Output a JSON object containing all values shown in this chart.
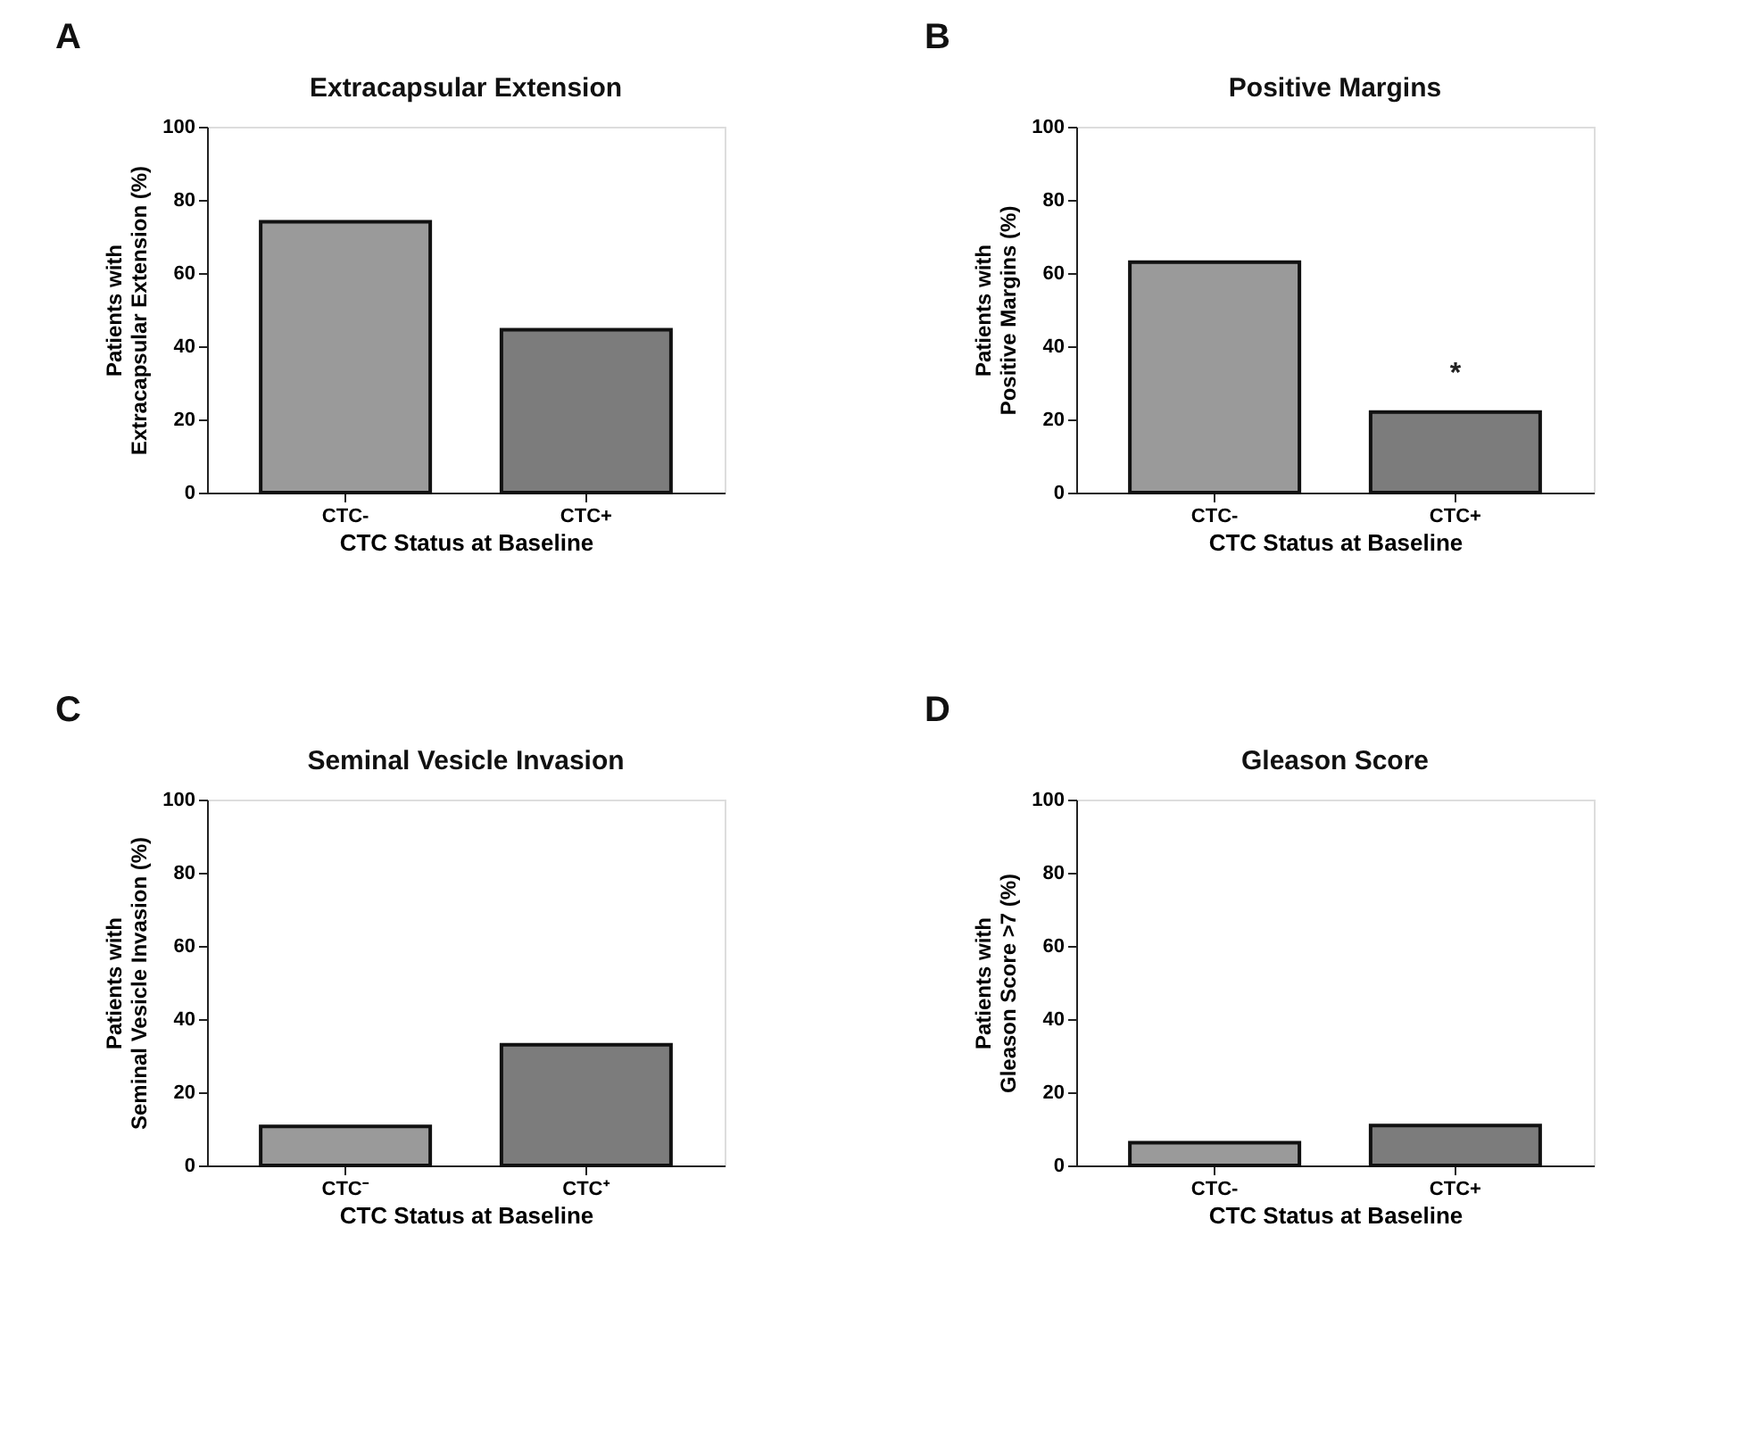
{
  "chart_data": [
    {
      "type": "bar",
      "title": "Extracapsular Extension",
      "xlabel": "CTC Status at Baseline",
      "ylabel": "Patients with\nExtracapsular Extension (%)",
      "categories": [
        "CTC-",
        "CTC+"
      ],
      "values": [
        74,
        44.5
      ],
      "colors": [
        "#9a9a9a",
        "#7c7c7c"
      ],
      "ylim": [
        0,
        100
      ],
      "yticks": [
        0,
        20,
        40,
        60,
        80,
        100
      ],
      "grid": false,
      "annotations": [
        "A"
      ]
    },
    {
      "type": "bar",
      "title": "Positive Margins",
      "xlabel": "CTC Status at Baseline",
      "ylabel": "Patients with\nPositive Margins (%)",
      "categories": [
        "CTC-",
        "CTC+"
      ],
      "values": [
        63,
        22
      ],
      "colors": [
        "#9a9a9a",
        "#7c7c7c"
      ],
      "ylim": [
        0,
        100
      ],
      "yticks": [
        0,
        20,
        40,
        60,
        80,
        100
      ],
      "grid": false,
      "annotations": [
        "B",
        "*"
      ]
    },
    {
      "type": "bar",
      "title": "Seminal Vesicle Invasion",
      "xlabel": "CTC Status at Baseline",
      "ylabel": "Patients with\nSeminal Vesicle Invasion (%)",
      "categories": [
        "CTC⁻",
        "CTC⁺"
      ],
      "values": [
        10.7,
        33
      ],
      "colors": [
        "#9a9a9a",
        "#7c7c7c"
      ],
      "ylim": [
        0,
        100
      ],
      "yticks": [
        0,
        20,
        40,
        60,
        80,
        100
      ],
      "grid": false,
      "annotations": [
        "C"
      ]
    },
    {
      "type": "bar",
      "title": "Gleason Score",
      "xlabel": "CTC Status at Baseline",
      "ylabel": "Patients with\nGleason Score >7 (%)",
      "categories": [
        "CTC-",
        "CTC+"
      ],
      "values": [
        6.2,
        10.9
      ],
      "colors": [
        "#9a9a9a",
        "#7c7c7c"
      ],
      "ylim": [
        0,
        100
      ],
      "yticks": [
        0,
        20,
        40,
        60,
        80,
        100
      ],
      "grid": false,
      "annotations": [
        "D"
      ]
    }
  ]
}
